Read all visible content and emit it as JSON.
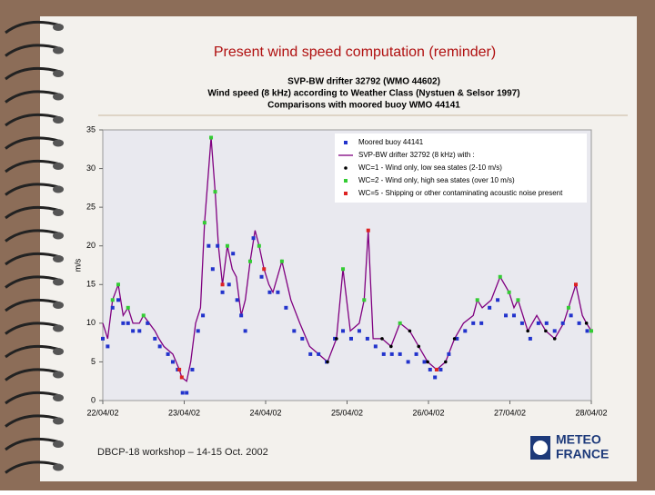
{
  "slide": {
    "title": "Present wind speed computation (reminder)",
    "footer": "DBCP-18 workshop – 14-15 Oct. 2002",
    "logo": [
      "METEO",
      "FRANCE"
    ]
  },
  "chart_data": {
    "type": "line",
    "title": [
      "SVP-BW drifter 32792 (WMO 44602)",
      "Wind speed (8 kHz) according to Weather Class (Nystuen & Selsor 1997)",
      "Comparisons with moored buoy WMO 44141"
    ],
    "y_label": "m/s",
    "xlim": [
      0,
      6
    ],
    "xticks": [
      {
        "value": 0,
        "label": "22/04/02"
      },
      {
        "value": 1,
        "label": "23/04/02"
      },
      {
        "value": 2,
        "label": "24/04/02"
      },
      {
        "value": 3,
        "label": "25/04/02"
      },
      {
        "value": 4,
        "label": "26/04/02"
      },
      {
        "value": 5,
        "label": "27/04/02"
      },
      {
        "value": 6,
        "label": "28/04/02"
      }
    ],
    "ylim": [
      0,
      35
    ],
    "yticks": [
      0,
      5,
      10,
      15,
      20,
      25,
      30,
      35
    ],
    "legend": "upper right",
    "series": [
      {
        "name": "Moored buoy 44141",
        "color": "#2233cc",
        "marker": "square",
        "x": [
          0,
          0.06,
          0.12,
          0.19,
          0.25,
          0.31,
          0.37,
          0.45,
          0.55,
          0.64,
          0.7,
          0.8,
          0.86,
          0.92,
          0.98,
          1.03,
          1.1,
          1.17,
          1.23,
          1.3,
          1.35,
          1.41,
          1.47,
          1.55,
          1.6,
          1.65,
          1.7,
          1.75,
          1.85,
          1.95,
          2.05,
          2.15,
          2.25,
          2.35,
          2.45,
          2.55,
          2.65,
          2.75,
          2.85,
          2.95,
          3.05,
          3.15,
          3.25,
          3.35,
          3.45,
          3.55,
          3.65,
          3.75,
          3.85,
          3.95,
          4.02,
          4.08,
          4.15,
          4.25,
          4.35,
          4.45,
          4.55,
          4.65,
          4.75,
          4.85,
          4.95,
          5.05,
          5.15,
          5.25,
          5.35,
          5.45,
          5.55,
          5.65,
          5.75,
          5.85,
          5.95
        ],
        "values": [
          8,
          7,
          12,
          13,
          10,
          10,
          9,
          9,
          10,
          8,
          7,
          6,
          5,
          4,
          1,
          1,
          4,
          9,
          11,
          20,
          17,
          20,
          14,
          15,
          19,
          13,
          11,
          9,
          21,
          16,
          14,
          14,
          12,
          9,
          8,
          6,
          6,
          5,
          8,
          9,
          8,
          9,
          8,
          7,
          6,
          6,
          6,
          5,
          6,
          5,
          4,
          3,
          4,
          6,
          8,
          9,
          10,
          10,
          12,
          13,
          11,
          11,
          10,
          8,
          10,
          10,
          9,
          10,
          11,
          10,
          9
        ]
      },
      {
        "name": "SVP-BW drifter 32792 (8 kHz) with :",
        "color": "#800080",
        "marker": "none",
        "x": [
          0,
          0.06,
          0.12,
          0.19,
          0.25,
          0.31,
          0.37,
          0.45,
          0.5,
          0.64,
          0.69,
          0.75,
          0.86,
          0.94,
          0.97,
          1.03,
          1.08,
          1.14,
          1.2,
          1.25,
          1.33,
          1.38,
          1.42,
          1.47,
          1.53,
          1.59,
          1.64,
          1.7,
          1.75,
          1.81,
          1.87,
          1.92,
          1.98,
          2.04,
          2.09,
          2.2,
          2.31,
          2.42,
          2.54,
          2.65,
          2.76,
          2.87,
          2.95,
          3.04,
          3.15,
          3.21,
          3.26,
          3.32,
          3.43,
          3.54,
          3.65,
          3.77,
          3.88,
          3.99,
          4.1,
          4.21,
          4.32,
          4.43,
          4.55,
          4.6,
          4.66,
          4.77,
          4.88,
          4.99,
          5.05,
          5.1,
          5.22,
          5.33,
          5.44,
          5.55,
          5.66,
          5.72,
          5.81,
          5.89,
          5.94,
          6.0
        ],
        "values": [
          10,
          8,
          13,
          15,
          11,
          12,
          10,
          10,
          11,
          9,
          8,
          7,
          6,
          4,
          3,
          2.5,
          5,
          10,
          12,
          23,
          34,
          27,
          20,
          15,
          20,
          17,
          16,
          11,
          13,
          18,
          22,
          20,
          17,
          15,
          14,
          18,
          13,
          10,
          7,
          6,
          5,
          8,
          17,
          9,
          10,
          13,
          22,
          8,
          8,
          7,
          10,
          9,
          7,
          5,
          4,
          5,
          8,
          10,
          11,
          13,
          12,
          13,
          16,
          14,
          12,
          13,
          9,
          11,
          9,
          8,
          10,
          12,
          15,
          11,
          10,
          9
        ]
      },
      {
        "name": "WC=1  - Wind only, low sea states (2-10 m/s)",
        "color": "#000000",
        "marker": "circle",
        "x": [
          2.76,
          2.87,
          3.43,
          3.54,
          3.77,
          3.88,
          3.99,
          4.21,
          4.32,
          5.22,
          5.44,
          5.55,
          5.94
        ],
        "values": [
          5,
          8,
          8,
          7,
          9,
          7,
          5,
          5,
          8,
          9,
          9,
          8,
          10
        ]
      },
      {
        "name": "WC=2  - Wind only, high sea states (over 10 m/s)",
        "color": "#33cc33",
        "marker": "square",
        "x": [
          0.12,
          0.19,
          0.31,
          0.5,
          1.25,
          1.33,
          1.38,
          1.53,
          1.81,
          1.92,
          2.2,
          2.95,
          3.21,
          3.65,
          4.6,
          4.88,
          4.99,
          5.1,
          5.72,
          6.0
        ],
        "values": [
          13,
          15,
          12,
          11,
          23,
          34,
          27,
          20,
          18,
          20,
          18,
          17,
          13,
          10,
          13,
          16,
          14,
          13,
          12,
          9
        ]
      },
      {
        "name": "WC=5  - Shipping or other contaminating acoustic noise present",
        "color": "#dd2222",
        "marker": "square",
        "x": [
          0.94,
          0.97,
          1.47,
          1.98,
          3.26,
          4.1,
          5.81
        ],
        "values": [
          4,
          3,
          15,
          17,
          22,
          4,
          15
        ]
      }
    ]
  }
}
